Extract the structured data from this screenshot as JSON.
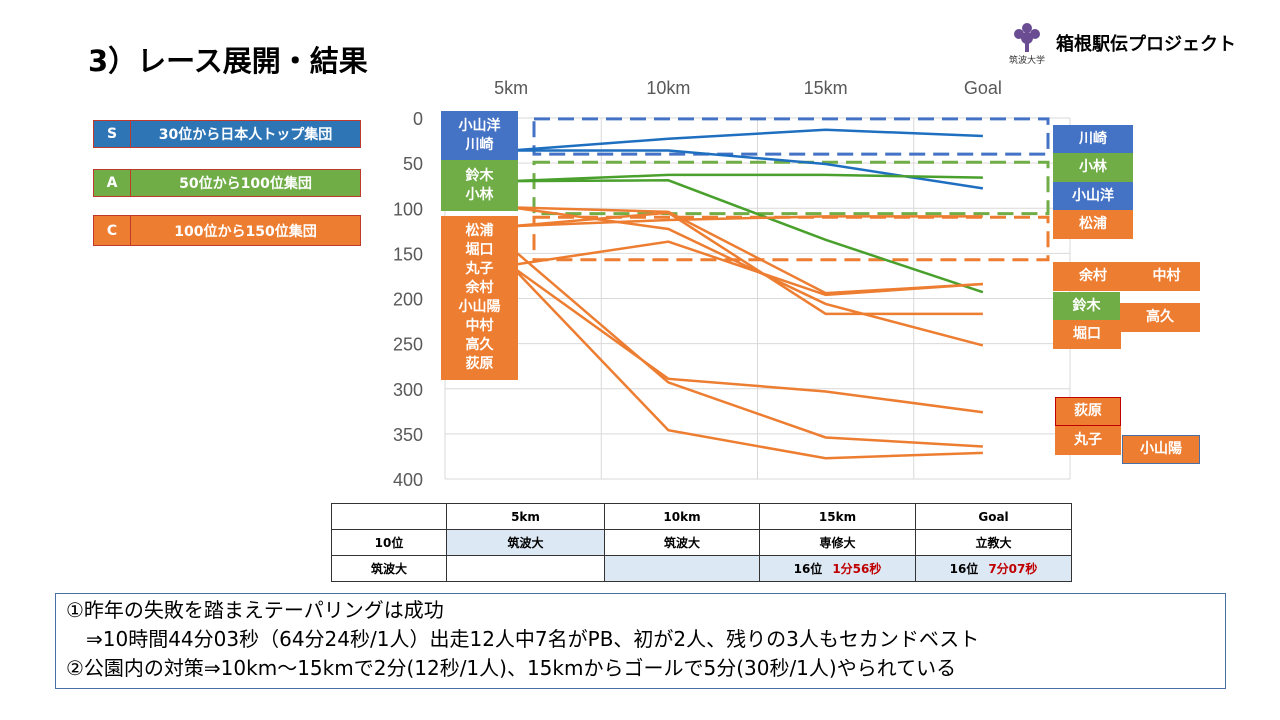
{
  "title": "3）レース展開・結果",
  "brand": {
    "name": "箱根駅伝プロジェクト",
    "logo_text": "筑波大学"
  },
  "legend": [
    {
      "key": "S",
      "label": "30位から日本人トップ集団",
      "color": "#2e75b6"
    },
    {
      "key": "A",
      "label": "50位から100位集団",
      "color": "#70ad47"
    },
    {
      "key": "C",
      "label": "100位から150位集団",
      "color": "#ed7d31"
    }
  ],
  "start_groups": [
    {
      "names": "小山洋\n川崎",
      "color": "blue"
    },
    {
      "names": "鈴木\n小林",
      "color": "green"
    },
    {
      "names": "松浦\n堀口\n丸子\n余村\n小山陽\n中村\n高久\n荻原",
      "color": "orange"
    }
  ],
  "finish_labels": [
    "川崎",
    "小林",
    "小山洋",
    "松浦",
    "余村",
    "中村",
    "鈴木",
    "高久",
    "堀口",
    "荻原",
    "丸子",
    "小山陽"
  ],
  "chart_data": {
    "type": "line",
    "categories": [
      "5km",
      "10km",
      "15km",
      "Goal"
    ],
    "ylim": [
      400,
      0
    ],
    "yticks": [
      0,
      50,
      100,
      150,
      200,
      250,
      300,
      350,
      400
    ],
    "grid": true,
    "series": [
      {
        "group": "S",
        "color": "#1f6fc0",
        "values": [
          36,
          23,
          13,
          20
        ]
      },
      {
        "group": "S",
        "color": "#1f6fc0",
        "values": [
          36,
          36,
          51,
          78
        ]
      },
      {
        "group": "A",
        "color": "#4aa02c",
        "values": [
          70,
          63,
          63,
          66
        ]
      },
      {
        "group": "A",
        "color": "#4aa02c",
        "values": [
          70,
          69,
          135,
          193
        ]
      },
      {
        "group": "C",
        "color": "#ed7d31",
        "values": [
          99,
          104,
          194,
          184
        ]
      },
      {
        "group": "C",
        "color": "#ed7d31",
        "values": [
          99,
          123,
          206,
          252
        ]
      },
      {
        "group": "C",
        "color": "#ed7d31",
        "values": [
          120,
          113,
          109,
          109
        ]
      },
      {
        "group": "C",
        "color": "#ed7d31",
        "values": [
          120,
          105,
          217,
          217
        ]
      },
      {
        "group": "C",
        "color": "#ed7d31",
        "values": [
          163,
          137,
          196,
          184
        ]
      },
      {
        "group": "C",
        "color": "#ed7d31",
        "values": [
          144,
          293,
          354,
          364
        ]
      },
      {
        "group": "C",
        "color": "#ed7d31",
        "values": [
          164,
          289,
          303,
          326
        ]
      },
      {
        "group": "C",
        "color": "#ed7d31",
        "values": [
          164,
          346,
          377,
          371
        ]
      }
    ],
    "bands": [
      {
        "group": "S",
        "range": [
          1,
          40
        ],
        "color": "#4472c4"
      },
      {
        "group": "A",
        "range": [
          49,
          106
        ],
        "color": "#70ad47"
      },
      {
        "group": "C",
        "range": [
          110,
          157
        ],
        "color": "#ed7d31"
      }
    ]
  },
  "table": {
    "header": [
      "",
      "5km",
      "10km",
      "15km",
      "Goal"
    ],
    "row1": [
      "10位",
      "筑波大",
      "筑波大",
      "専修大",
      "立教大"
    ],
    "row2": {
      "label": "筑波大",
      "c15_rank": "16位",
      "c15_gap": "1分56秒",
      "goal_rank": "16位",
      "goal_gap": "7分07秒"
    }
  },
  "notes": [
    "①昨年の失敗を踏まえテーパリングは成功",
    "　⇒10時間44分03秒（64分24秒/1人）出走12人中7名がPB、初が2人、残りの3人もセカンドベスト",
    "②公園内の対策⇒10km～15kmで2分(12秒/1人)、15kmからゴールで5分(30秒/1人)やられている"
  ]
}
